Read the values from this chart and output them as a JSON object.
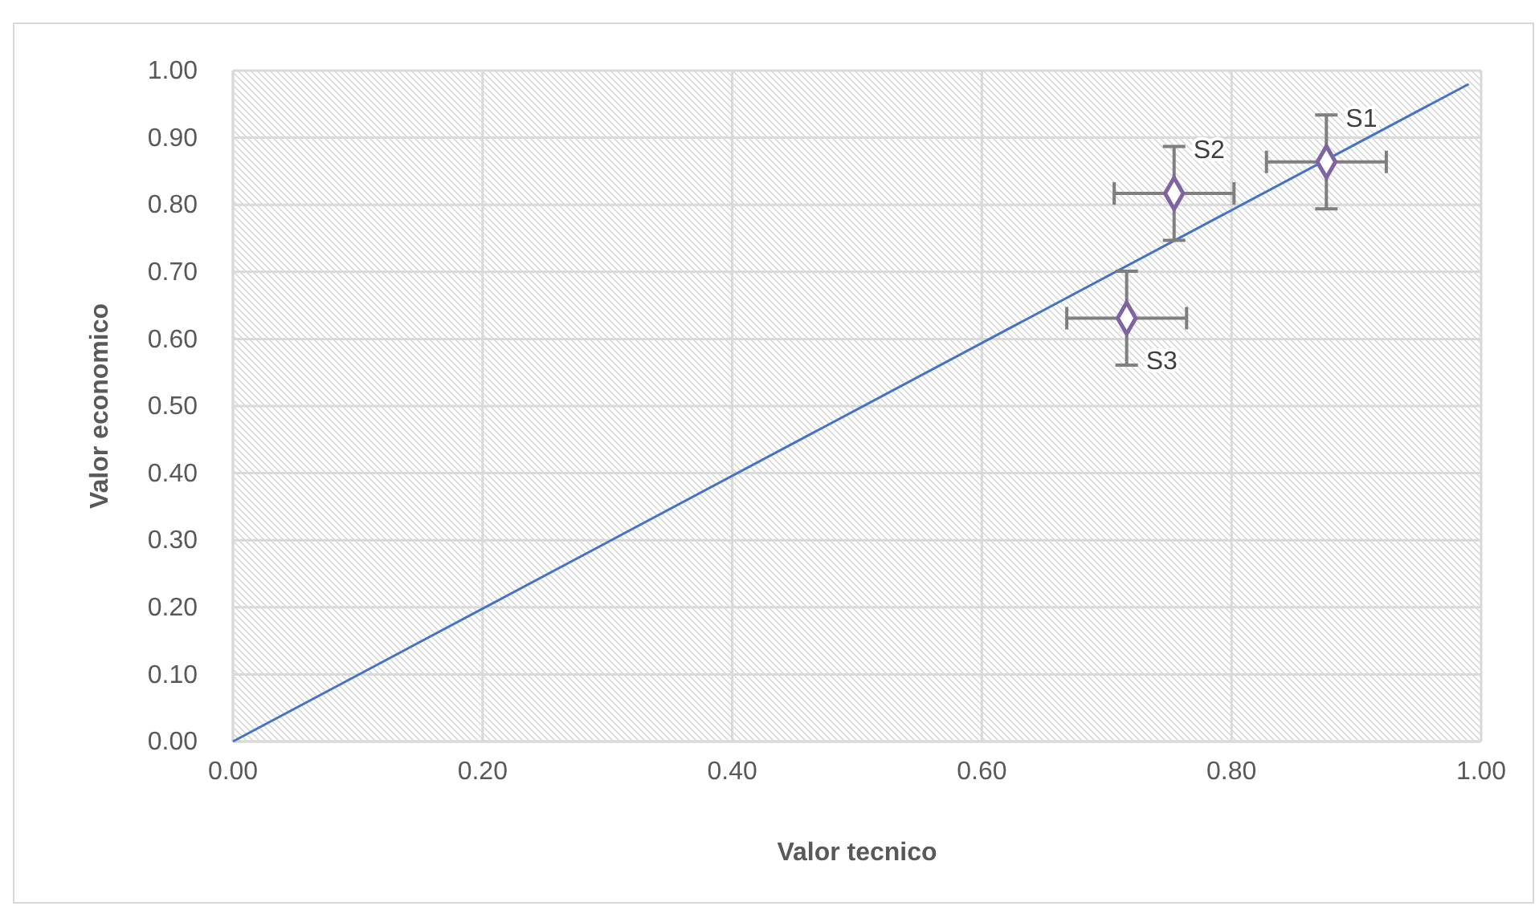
{
  "chart_data": {
    "type": "scatter",
    "xlabel": "Valor tecnico",
    "ylabel": "Valor economico",
    "xlim": [
      0,
      1
    ],
    "ylim": [
      0,
      1
    ],
    "xticks": [
      {
        "value": 0,
        "label": "0.00"
      },
      {
        "value": 0.2,
        "label": "0.20"
      },
      {
        "value": 0.4,
        "label": "0.40"
      },
      {
        "value": 0.6,
        "label": "0.60"
      },
      {
        "value": 0.8,
        "label": "0.80"
      },
      {
        "value": 1,
        "label": "1.00"
      }
    ],
    "yticks": [
      {
        "value": 0,
        "label": "0.00"
      },
      {
        "value": 0.1,
        "label": "0.10"
      },
      {
        "value": 0.2,
        "label": "0.20"
      },
      {
        "value": 0.3,
        "label": "0.30"
      },
      {
        "value": 0.4,
        "label": "0.40"
      },
      {
        "value": 0.5,
        "label": "0.50"
      },
      {
        "value": 0.6,
        "label": "0.60"
      },
      {
        "value": 0.7,
        "label": "0.70"
      },
      {
        "value": 0.8,
        "label": "0.80"
      },
      {
        "value": 0.9,
        "label": "0.90"
      },
      {
        "value": 1,
        "label": "1.00"
      }
    ],
    "grid": true,
    "series": [
      {
        "color": "#8064a2",
        "marker": "diamond",
        "x": [
          0.876,
          0.754,
          0.716
        ],
        "values": [
          0.864,
          0.817,
          0.631
        ],
        "errors": [
          0.07,
          0.07,
          0.07
        ],
        "xerrors": [
          0.048,
          0.048,
          0.048
        ]
      },
      {
        "type": "line",
        "color": "#4472c4",
        "marker": "none",
        "line_style": "solid",
        "x": [
          0,
          0.99
        ],
        "values": [
          0,
          0.98
        ]
      }
    ],
    "annotations": [
      {
        "text": "S1",
        "x": 0.876,
        "y": 0.864
      },
      {
        "text": "S2",
        "x": 0.754,
        "y": 0.817
      },
      {
        "text": "S3",
        "x": 0.716,
        "y": 0.631
      }
    ]
  }
}
